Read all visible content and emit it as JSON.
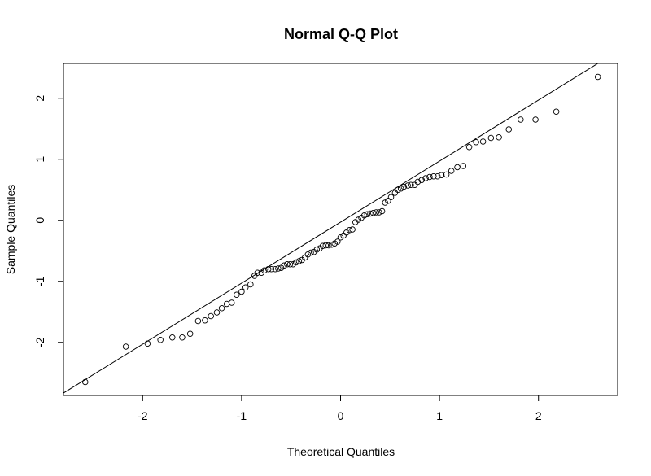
{
  "chart_data": {
    "type": "scatter",
    "title": "Normal Q-Q Plot",
    "xlabel": "Theoretical Quantiles",
    "ylabel": "Sample Quantiles",
    "xlim": [
      -2.8,
      2.8
    ],
    "ylim": [
      -2.87,
      2.57
    ],
    "x_ticks": [
      -2,
      -1,
      0,
      1,
      2
    ],
    "y_ticks": [
      -2,
      -1,
      0,
      1,
      2
    ],
    "x_tick_labels": [
      "-2",
      "-1",
      "0",
      "1",
      "2"
    ],
    "y_tick_labels": [
      "-2",
      "-1",
      "0",
      "1",
      "2"
    ],
    "reference_line": {
      "intercept": -0.03,
      "slope": 1.0
    },
    "marker": "open-circle",
    "series": [
      {
        "name": "sample",
        "points": [
          [
            -2.58,
            -2.65
          ],
          [
            -2.17,
            -2.07
          ],
          [
            -1.95,
            -2.02
          ],
          [
            -1.82,
            -1.96
          ],
          [
            -1.7,
            -1.92
          ],
          [
            -1.6,
            -1.92
          ],
          [
            -1.52,
            -1.86
          ],
          [
            -1.44,
            -1.65
          ],
          [
            -1.37,
            -1.64
          ],
          [
            -1.31,
            -1.57
          ],
          [
            -1.25,
            -1.51
          ],
          [
            -1.2,
            -1.44
          ],
          [
            -1.15,
            -1.37
          ],
          [
            -1.1,
            -1.35
          ],
          [
            -1.05,
            -1.22
          ],
          [
            -1.0,
            -1.17
          ],
          [
            -0.96,
            -1.1
          ],
          [
            -0.91,
            -1.05
          ],
          [
            -0.87,
            -0.91
          ],
          [
            -0.84,
            -0.86
          ],
          [
            -0.8,
            -0.86
          ],
          [
            -0.77,
            -0.82
          ],
          [
            -0.73,
            -0.8
          ],
          [
            -0.7,
            -0.8
          ],
          [
            -0.66,
            -0.8
          ],
          [
            -0.63,
            -0.79
          ],
          [
            -0.6,
            -0.78
          ],
          [
            -0.57,
            -0.74
          ],
          [
            -0.54,
            -0.72
          ],
          [
            -0.51,
            -0.72
          ],
          [
            -0.48,
            -0.72
          ],
          [
            -0.45,
            -0.69
          ],
          [
            -0.42,
            -0.67
          ],
          [
            -0.39,
            -0.65
          ],
          [
            -0.36,
            -0.61
          ],
          [
            -0.33,
            -0.56
          ],
          [
            -0.3,
            -0.53
          ],
          [
            -0.27,
            -0.52
          ],
          [
            -0.24,
            -0.48
          ],
          [
            -0.21,
            -0.46
          ],
          [
            -0.18,
            -0.42
          ],
          [
            -0.15,
            -0.41
          ],
          [
            -0.12,
            -0.41
          ],
          [
            -0.09,
            -0.4
          ],
          [
            -0.06,
            -0.38
          ],
          [
            -0.03,
            -0.35
          ],
          [
            0.0,
            -0.28
          ],
          [
            0.03,
            -0.25
          ],
          [
            0.06,
            -0.2
          ],
          [
            0.09,
            -0.16
          ],
          [
            0.12,
            -0.15
          ],
          [
            0.15,
            -0.03
          ],
          [
            0.18,
            0.01
          ],
          [
            0.21,
            0.04
          ],
          [
            0.24,
            0.08
          ],
          [
            0.27,
            0.1
          ],
          [
            0.3,
            0.11
          ],
          [
            0.33,
            0.12
          ],
          [
            0.36,
            0.13
          ],
          [
            0.39,
            0.13
          ],
          [
            0.42,
            0.15
          ],
          [
            0.45,
            0.29
          ],
          [
            0.48,
            0.32
          ],
          [
            0.51,
            0.38
          ],
          [
            0.55,
            0.45
          ],
          [
            0.58,
            0.5
          ],
          [
            0.61,
            0.52
          ],
          [
            0.64,
            0.55
          ],
          [
            0.68,
            0.57
          ],
          [
            0.71,
            0.58
          ],
          [
            0.75,
            0.58
          ],
          [
            0.78,
            0.63
          ],
          [
            0.82,
            0.66
          ],
          [
            0.86,
            0.69
          ],
          [
            0.9,
            0.71
          ],
          [
            0.94,
            0.72
          ],
          [
            0.98,
            0.72
          ],
          [
            1.02,
            0.74
          ],
          [
            1.07,
            0.75
          ],
          [
            1.12,
            0.81
          ],
          [
            1.18,
            0.87
          ],
          [
            1.24,
            0.89
          ],
          [
            1.3,
            1.2
          ],
          [
            1.37,
            1.28
          ],
          [
            1.44,
            1.29
          ],
          [
            1.52,
            1.35
          ],
          [
            1.6,
            1.36
          ],
          [
            1.7,
            1.49
          ],
          [
            1.82,
            1.65
          ],
          [
            1.97,
            1.65
          ],
          [
            2.18,
            1.78
          ],
          [
            2.6,
            2.35
          ]
        ]
      }
    ]
  }
}
